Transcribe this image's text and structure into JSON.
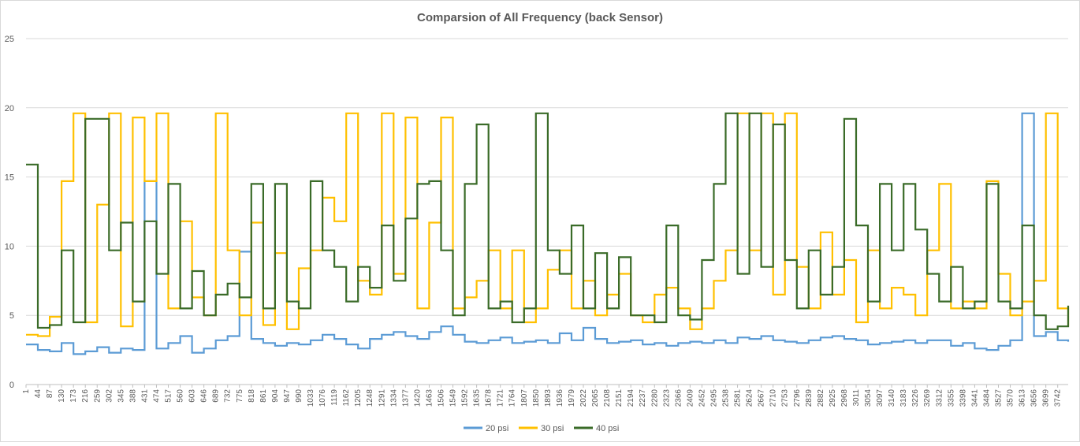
{
  "chart_data": {
    "type": "line",
    "title": "Comparsion of All Frequency (back Sensor)",
    "xlabel": "",
    "ylabel": "",
    "ylim": [
      0,
      25
    ],
    "yticks": [
      0,
      5,
      10,
      15,
      20,
      25
    ],
    "grid": true,
    "legend_position": "bottom",
    "x_start": 1,
    "x_end": 3780,
    "x_tick_labels": [
      "1",
      "44",
      "87",
      "130",
      "173",
      "216",
      "259",
      "302",
      "345",
      "388",
      "431",
      "474",
      "517",
      "560",
      "603",
      "646",
      "689",
      "732",
      "775",
      "818",
      "861",
      "904",
      "947",
      "990",
      "1033",
      "1076",
      "1119",
      "1162",
      "1205",
      "1248",
      "1291",
      "1334",
      "1377",
      "1420",
      "1463",
      "1506",
      "1549",
      "1592",
      "1635",
      "1678",
      "1721",
      "1764",
      "1807",
      "1850",
      "1893",
      "1936",
      "1979",
      "2022",
      "2065",
      "2108",
      "2151",
      "2194",
      "2237",
      "2280",
      "2323",
      "2366",
      "2409",
      "2452",
      "2495",
      "2538",
      "2581",
      "2624",
      "2667",
      "2710",
      "2753",
      "2796",
      "2839",
      "2882",
      "2925",
      "2968",
      "3011",
      "3054",
      "3097",
      "3140",
      "3183",
      "3226",
      "3269",
      "3312",
      "3355",
      "3398",
      "3441",
      "3484",
      "3527",
      "3570",
      "3613",
      "3656",
      "3699",
      "3742"
    ],
    "series": [
      {
        "name": "20 psi",
        "color": "#5B9BD5",
        "x": [
          1,
          44,
          87,
          130,
          173,
          216,
          259,
          302,
          345,
          388,
          431,
          474,
          517,
          560,
          603,
          646,
          689,
          732,
          775,
          818,
          861,
          904,
          947,
          990,
          1033,
          1076,
          1119,
          1162,
          1205,
          1248,
          1291,
          1334,
          1377,
          1420,
          1463,
          1506,
          1549,
          1592,
          1635,
          1678,
          1721,
          1764,
          1807,
          1850,
          1893,
          1936,
          1979,
          2022,
          2065,
          2108,
          2151,
          2194,
          2237,
          2280,
          2323,
          2366,
          2409,
          2452,
          2495,
          2538,
          2581,
          2624,
          2667,
          2710,
          2753,
          2796,
          2839,
          2882,
          2925,
          2968,
          3011,
          3054,
          3097,
          3140,
          3183,
          3226,
          3269,
          3312,
          3355,
          3398,
          3441,
          3484,
          3527,
          3570,
          3613,
          3656,
          3699,
          3742,
          3780
        ],
        "values": [
          2.9,
          2.5,
          2.4,
          3.0,
          2.2,
          2.4,
          2.7,
          2.3,
          2.6,
          2.5,
          14.7,
          2.6,
          3.0,
          3.5,
          2.3,
          2.6,
          3.2,
          3.5,
          9.6,
          3.3,
          3.0,
          2.8,
          3.0,
          2.9,
          3.2,
          3.6,
          3.3,
          2.9,
          2.6,
          3.3,
          3.6,
          3.8,
          3.5,
          3.3,
          3.8,
          4.2,
          3.6,
          3.1,
          3.0,
          3.2,
          3.4,
          3.0,
          3.1,
          3.2,
          3.0,
          3.7,
          3.2,
          4.1,
          3.3,
          3.0,
          3.1,
          3.2,
          2.9,
          3.0,
          2.8,
          3.0,
          3.1,
          3.0,
          3.2,
          3.0,
          3.4,
          3.3,
          3.5,
          3.2,
          3.1,
          3.0,
          3.2,
          3.4,
          3.5,
          3.3,
          3.2,
          2.9,
          3.0,
          3.1,
          3.2,
          3.0,
          3.2,
          3.2,
          2.8,
          3.0,
          2.6,
          2.5,
          2.8,
          3.2,
          19.6,
          3.5,
          3.8,
          3.2,
          3.1
        ]
      },
      {
        "name": "30 psi",
        "color": "#FFC000",
        "x": [
          1,
          44,
          87,
          130,
          173,
          216,
          259,
          302,
          345,
          388,
          431,
          474,
          517,
          560,
          603,
          646,
          689,
          732,
          775,
          818,
          861,
          904,
          947,
          990,
          1033,
          1076,
          1119,
          1162,
          1205,
          1248,
          1291,
          1334,
          1377,
          1420,
          1463,
          1506,
          1549,
          1592,
          1635,
          1678,
          1721,
          1764,
          1807,
          1850,
          1893,
          1936,
          1979,
          2022,
          2065,
          2108,
          2151,
          2194,
          2237,
          2280,
          2323,
          2366,
          2409,
          2452,
          2495,
          2538,
          2581,
          2624,
          2667,
          2710,
          2753,
          2796,
          2839,
          2882,
          2925,
          2968,
          3011,
          3054,
          3097,
          3140,
          3183,
          3226,
          3269,
          3312,
          3355,
          3398,
          3441,
          3484,
          3527,
          3570,
          3613,
          3656,
          3699,
          3742,
          3780
        ],
        "values": [
          3.6,
          3.5,
          4.9,
          14.7,
          19.6,
          4.5,
          13.0,
          19.6,
          4.2,
          19.3,
          14.7,
          19.6,
          5.5,
          11.8,
          6.3,
          5.0,
          19.6,
          9.7,
          5.0,
          11.7,
          4.3,
          9.5,
          4.0,
          8.4,
          9.7,
          13.5,
          11.8,
          19.6,
          7.5,
          6.5,
          19.6,
          8.0,
          19.3,
          5.5,
          11.7,
          19.3,
          5.5,
          6.3,
          7.5,
          9.7,
          5.5,
          9.7,
          4.5,
          5.5,
          8.3,
          9.7,
          5.5,
          7.5,
          5.0,
          6.5,
          8.0,
          5.0,
          4.5,
          6.5,
          7.0,
          5.5,
          4.0,
          5.5,
          7.5,
          9.7,
          19.6,
          9.7,
          19.6,
          6.5,
          19.6,
          8.5,
          5.5,
          11.0,
          6.5,
          9.0,
          4.5,
          9.7,
          5.5,
          7.0,
          6.5,
          5.0,
          9.7,
          14.5,
          5.5,
          6.0,
          5.5,
          14.7,
          8.0,
          5.0,
          6.0,
          7.5,
          19.6,
          5.5,
          4.2
        ]
      },
      {
        "name": "40 psi",
        "color": "#3A6B28",
        "x": [
          1,
          44,
          87,
          130,
          173,
          216,
          259,
          302,
          345,
          388,
          431,
          474,
          517,
          560,
          603,
          646,
          689,
          732,
          775,
          818,
          861,
          904,
          947,
          990,
          1033,
          1076,
          1119,
          1162,
          1205,
          1248,
          1291,
          1334,
          1377,
          1420,
          1463,
          1506,
          1549,
          1592,
          1635,
          1678,
          1721,
          1764,
          1807,
          1850,
          1893,
          1936,
          1979,
          2022,
          2065,
          2108,
          2151,
          2194,
          2237,
          2280,
          2323,
          2366,
          2409,
          2452,
          2495,
          2538,
          2581,
          2624,
          2667,
          2710,
          2753,
          2796,
          2839,
          2882,
          2925,
          2968,
          3011,
          3054,
          3097,
          3140,
          3183,
          3226,
          3269,
          3312,
          3355,
          3398,
          3441,
          3484,
          3527,
          3570,
          3613,
          3656,
          3699,
          3742,
          3780
        ],
        "values": [
          15.9,
          4.1,
          4.3,
          9.7,
          4.5,
          19.2,
          19.2,
          9.7,
          11.7,
          6.0,
          11.8,
          8.0,
          14.5,
          5.5,
          8.2,
          5.0,
          6.5,
          7.3,
          6.3,
          14.5,
          5.5,
          14.5,
          6.0,
          5.5,
          14.7,
          9.7,
          8.5,
          6.0,
          8.5,
          7.0,
          11.5,
          7.5,
          12.0,
          14.5,
          14.7,
          9.7,
          5.0,
          14.5,
          18.8,
          5.5,
          6.0,
          4.5,
          5.5,
          19.6,
          9.7,
          8.0,
          11.5,
          5.5,
          9.5,
          5.5,
          9.2,
          5.0,
          5.0,
          4.5,
          11.5,
          5.0,
          4.7,
          9.0,
          14.5,
          19.6,
          8.0,
          19.6,
          8.5,
          18.8,
          9.0,
          5.5,
          9.7,
          6.5,
          8.5,
          19.2,
          11.5,
          6.0,
          14.5,
          9.7,
          14.5,
          11.2,
          8.0,
          6.0,
          8.5,
          5.5,
          6.0,
          14.5,
          6.0,
          5.5,
          11.5,
          5.0,
          4.0,
          4.2,
          5.7
        ]
      }
    ]
  }
}
